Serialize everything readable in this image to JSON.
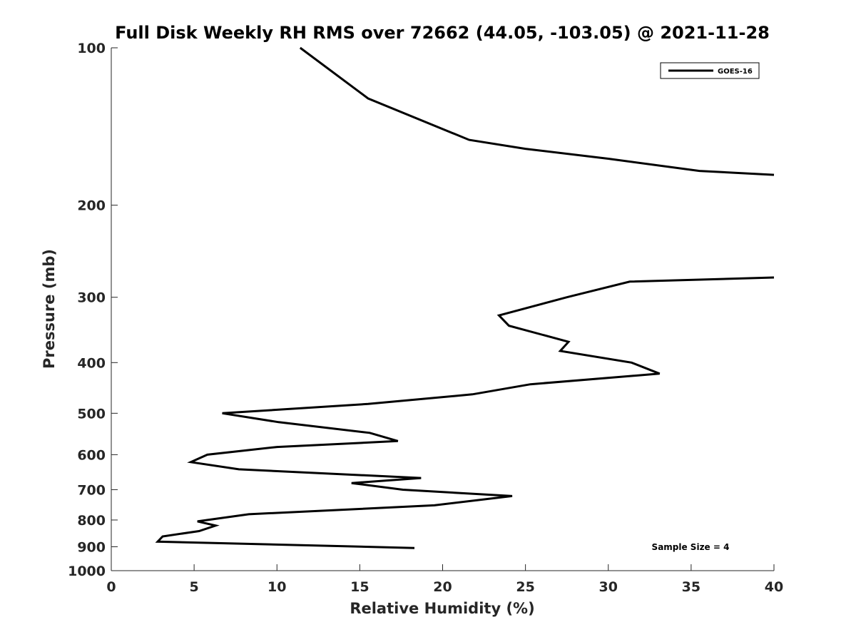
{
  "chart_data": {
    "type": "line",
    "title": "Full Disk Weekly RH RMS over 72662 (44.05, -103.05) @ 2021-11-28",
    "xlabel": "Relative Humidity (%)",
    "ylabel": "Pressure (mb)",
    "xlim": [
      0,
      40
    ],
    "ylim": [
      100,
      1000
    ],
    "y_scale": "log",
    "y_reversed": true,
    "x_ticks": [
      0,
      5,
      10,
      15,
      20,
      25,
      30,
      35,
      40
    ],
    "y_ticks": [
      100,
      200,
      300,
      400,
      500,
      600,
      700,
      800,
      900,
      1000
    ],
    "grid": false,
    "legend_position": "top-right",
    "series": [
      {
        "name": "GOES-16",
        "color": "#000000",
        "segments": [
          [
            {
              "x": 11.4,
              "y": 100
            },
            {
              "x": 15.5,
              "y": 125
            },
            {
              "x": 21.6,
              "y": 150
            },
            {
              "x": 25.0,
              "y": 156
            },
            {
              "x": 30.0,
              "y": 163
            },
            {
              "x": 35.5,
              "y": 172
            },
            {
              "x": 40.0,
              "y": 175
            }
          ],
          [
            {
              "x": 40.0,
              "y": 275
            },
            {
              "x": 31.3,
              "y": 280
            },
            {
              "x": 27.5,
              "y": 300
            },
            {
              "x": 23.4,
              "y": 325
            },
            {
              "x": 24.0,
              "y": 340
            },
            {
              "x": 27.6,
              "y": 365
            },
            {
              "x": 27.1,
              "y": 380
            },
            {
              "x": 31.4,
              "y": 400
            },
            {
              "x": 33.1,
              "y": 420
            },
            {
              "x": 25.3,
              "y": 440
            },
            {
              "x": 21.8,
              "y": 460
            },
            {
              "x": 15.5,
              "y": 480
            },
            {
              "x": 6.7,
              "y": 500
            },
            {
              "x": 10.1,
              "y": 520
            },
            {
              "x": 15.6,
              "y": 545
            },
            {
              "x": 17.3,
              "y": 565
            },
            {
              "x": 10.0,
              "y": 580
            },
            {
              "x": 5.8,
              "y": 600
            },
            {
              "x": 4.8,
              "y": 620
            },
            {
              "x": 7.7,
              "y": 640
            },
            {
              "x": 18.7,
              "y": 665
            },
            {
              "x": 14.5,
              "y": 680
            },
            {
              "x": 17.6,
              "y": 700
            },
            {
              "x": 24.2,
              "y": 720
            },
            {
              "x": 19.5,
              "y": 750
            },
            {
              "x": 8.3,
              "y": 780
            },
            {
              "x": 5.2,
              "y": 805
            },
            {
              "x": 6.3,
              "y": 820
            },
            {
              "x": 5.3,
              "y": 840
            },
            {
              "x": 3.1,
              "y": 860
            },
            {
              "x": 2.8,
              "y": 880
            },
            {
              "x": 18.3,
              "y": 905
            }
          ]
        ]
      }
    ],
    "annotations": [
      {
        "text": "Sample Size = 4",
        "position": "bottom-right"
      }
    ]
  }
}
